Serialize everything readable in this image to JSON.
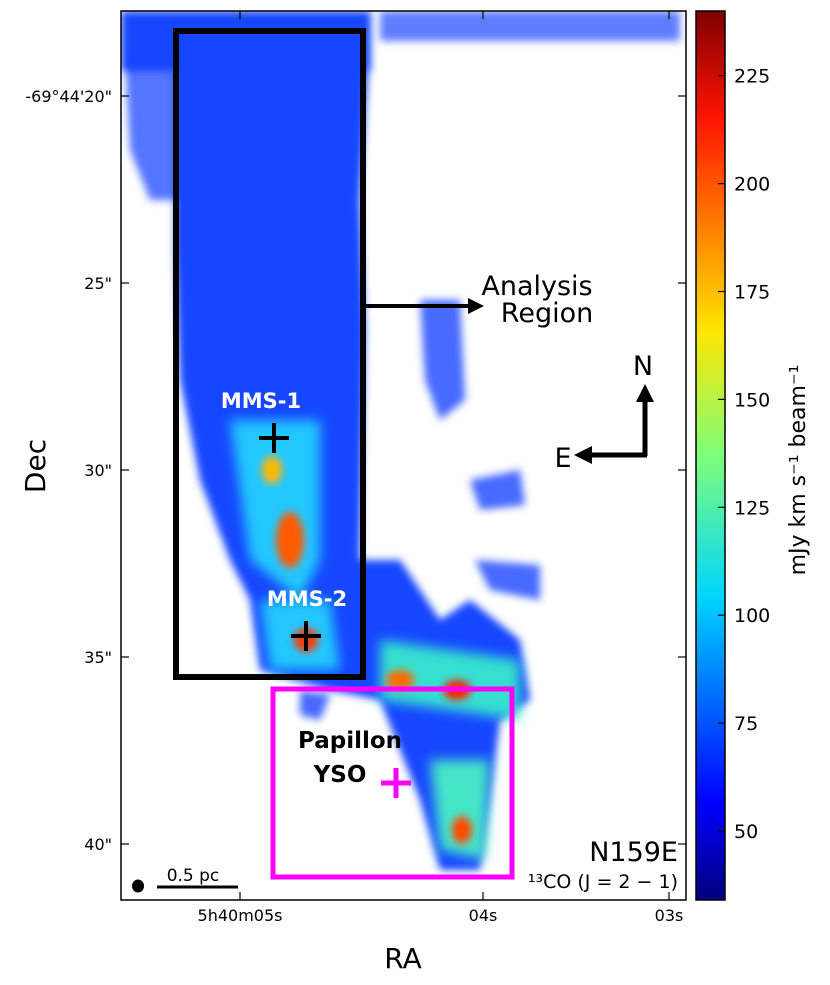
{
  "chart_data": {
    "type": "heatmap",
    "xlabel": "RA",
    "ylabel": "Dec",
    "x_ticks": [
      "5h40m05s",
      "04s",
      "03s"
    ],
    "y_ticks": [
      "-69°44'20\"",
      "25\"",
      "30\"",
      "35\"",
      "40\""
    ],
    "colorbar": {
      "label": "mJy km s⁻¹ beam⁻¹",
      "ticks": [
        50,
        75,
        100,
        125,
        150,
        175,
        200,
        225
      ],
      "range": [
        34,
        240
      ],
      "colormap": "jet"
    },
    "annotations": {
      "field": "N159E",
      "line": "¹³CO (J = 2 − 1)",
      "scalebar": "0.5 pc",
      "analysis_region_line1": "Analysis",
      "analysis_region_line2": "Region",
      "sources": [
        {
          "name": "MMS-1"
        },
        {
          "name": "MMS-2"
        }
      ],
      "papillon_line1": "Papillon",
      "papillon_line2": "YSO",
      "compass_north": "N",
      "compass_east": "E"
    },
    "colors": {
      "analysis_box": "#000000",
      "papillon_box": "#ff00ff",
      "papillon_text": "#cc00cc"
    }
  }
}
